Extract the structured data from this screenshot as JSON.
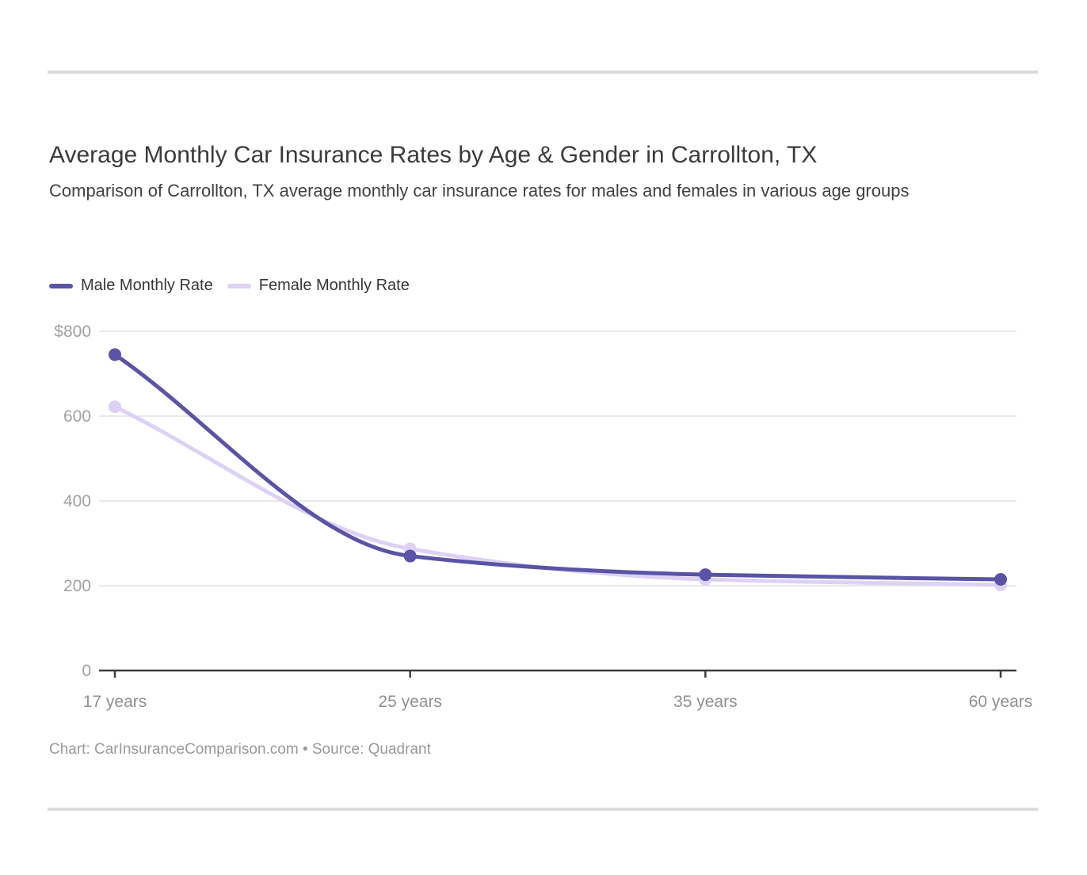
{
  "page": {
    "title": "Average Monthly Car Insurance Rates by Age & Gender in Carrollton, TX",
    "subtitle": "Comparison of Carrollton, TX average monthly car insurance rates for males and females in various age groups",
    "footer": "Chart: CarInsuranceComparison.com • Source: Quadrant"
  },
  "legend": {
    "items": [
      {
        "label": "Male Monthly Rate",
        "color": "#5a53a6"
      },
      {
        "label": "Female Monthly Rate",
        "color": "#ddd2f5"
      }
    ]
  },
  "chart_data": {
    "type": "line",
    "title": "Average Monthly Car Insurance Rates by Age & Gender in Carrollton, TX",
    "subtitle": "Comparison of Carrollton, TX average monthly car insurance rates for males and females in various age groups",
    "categories": [
      "17 years",
      "25 years",
      "35 years",
      "60 years"
    ],
    "series": [
      {
        "name": "Male Monthly Rate",
        "color": "#5a53a6",
        "values": [
          745,
          270,
          226,
          215
        ]
      },
      {
        "name": "Female Monthly Rate",
        "color": "#ddd2f5",
        "values": [
          622,
          287,
          215,
          202
        ]
      }
    ],
    "xlabel": "",
    "ylabel": "",
    "ylim": [
      0,
      800
    ],
    "yticks": [
      800,
      600,
      400,
      200,
      0
    ],
    "ytick_labels": [
      "$800",
      "600",
      "400",
      "200",
      "0"
    ],
    "grid": true,
    "legend_position": "top-left",
    "source_note": "Chart: CarInsuranceComparison.com • Source: Quadrant"
  },
  "colors": {
    "male_series": "#5a53a6",
    "female_series": "#ddd2f5",
    "gridline": "#e9e9e9",
    "axis": "#3d3d3d",
    "y_tick_label": "#a1a1a1",
    "x_tick_label": "#8f8f8f",
    "divider": "#dcdcdc"
  }
}
